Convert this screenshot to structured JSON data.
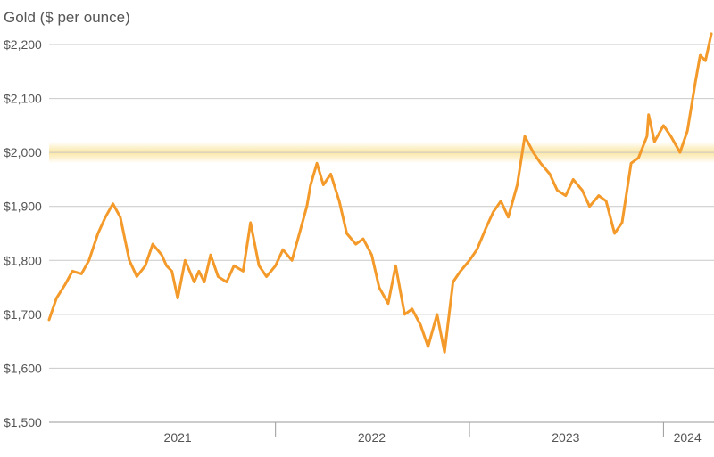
{
  "colors": {
    "line": "#f39a2a",
    "highlight_band": "#fbe6a4",
    "grid": "#c9c9c9",
    "text": "#555555"
  },
  "chart_data": {
    "type": "line",
    "title": "Gold ($ per ounce)",
    "xlabel": "",
    "ylabel": "",
    "y_range": [
      1500,
      2200
    ],
    "y_ticks": [
      1500,
      1600,
      1700,
      1800,
      1900,
      2000,
      2100,
      2200
    ],
    "y_tick_labels": [
      "$1,500",
      "$1,600",
      "$1,700",
      "$1,800",
      "$1,900",
      "$2,000",
      "$2,100",
      "$2,200"
    ],
    "x_range": [
      "2020-11-01",
      "2024-03-31"
    ],
    "x_year_labels": [
      {
        "label": "2021",
        "date": "2021-07-01"
      },
      {
        "label": "2022",
        "date": "2022-07-01"
      },
      {
        "label": "2023",
        "date": "2023-07-01"
      },
      {
        "label": "2024",
        "date": "2024-02-15"
      }
    ],
    "year_boundaries": [
      "2022-01-01",
      "2023-01-01",
      "2024-01-01"
    ],
    "grid": "horizontal",
    "highlight_band": {
      "value": 2000,
      "from": 1980,
      "to": 2020
    },
    "series": [
      {
        "x": [
          "2020-11-01",
          "2020-11-15",
          "2020-12-01",
          "2020-12-15",
          "2021-01-01",
          "2021-01-15",
          "2021-02-01",
          "2021-02-15",
          "2021-03-01",
          "2021-03-15",
          "2021-04-01",
          "2021-04-15",
          "2021-05-01",
          "2021-05-15",
          "2021-06-01",
          "2021-06-10",
          "2021-06-20",
          "2021-07-01",
          "2021-07-15",
          "2021-08-01",
          "2021-08-10",
          "2021-08-20",
          "2021-09-01",
          "2021-09-15",
          "2021-10-01",
          "2021-10-15",
          "2021-11-01",
          "2021-11-15",
          "2021-12-01",
          "2021-12-15",
          "2022-01-01",
          "2022-01-15",
          "2022-02-01",
          "2022-02-15",
          "2022-03-01",
          "2022-03-08",
          "2022-03-20",
          "2022-04-01",
          "2022-04-15",
          "2022-05-01",
          "2022-05-15",
          "2022-06-01",
          "2022-06-15",
          "2022-07-01",
          "2022-07-15",
          "2022-08-01",
          "2022-08-15",
          "2022-09-01",
          "2022-09-15",
          "2022-10-01",
          "2022-10-15",
          "2022-11-01",
          "2022-11-15",
          "2022-12-01",
          "2022-12-15",
          "2023-01-01",
          "2023-01-15",
          "2023-02-01",
          "2023-02-15",
          "2023-03-01",
          "2023-03-15",
          "2023-04-01",
          "2023-04-15",
          "2023-05-01",
          "2023-05-15",
          "2023-06-01",
          "2023-06-15",
          "2023-07-01",
          "2023-07-15",
          "2023-08-01",
          "2023-08-15",
          "2023-09-01",
          "2023-09-15",
          "2023-10-01",
          "2023-10-15",
          "2023-11-01",
          "2023-11-15",
          "2023-12-01",
          "2023-12-04",
          "2023-12-15",
          "2024-01-01",
          "2024-01-15",
          "2024-02-01",
          "2024-02-15",
          "2024-03-01",
          "2024-03-10",
          "2024-03-20",
          "2024-03-31"
        ],
        "values": [
          1690,
          1730,
          1755,
          1780,
          1775,
          1800,
          1850,
          1880,
          1905,
          1880,
          1800,
          1770,
          1790,
          1830,
          1810,
          1790,
          1780,
          1730,
          1800,
          1760,
          1780,
          1760,
          1810,
          1770,
          1760,
          1790,
          1780,
          1870,
          1790,
          1770,
          1790,
          1820,
          1800,
          1850,
          1900,
          1940,
          1980,
          1940,
          1960,
          1910,
          1850,
          1830,
          1840,
          1810,
          1750,
          1720,
          1790,
          1700,
          1710,
          1680,
          1640,
          1700,
          1630,
          1760,
          1780,
          1800,
          1820,
          1860,
          1890,
          1910,
          1880,
          1940,
          2030,
          2000,
          1980,
          1960,
          1930,
          1920,
          1950,
          1930,
          1900,
          1920,
          1910,
          1850,
          1870,
          1980,
          1990,
          2030,
          2070,
          2020,
          2050,
          2030,
          2000,
          2040,
          2130,
          2180,
          2170,
          2220
        ]
      }
    ]
  }
}
